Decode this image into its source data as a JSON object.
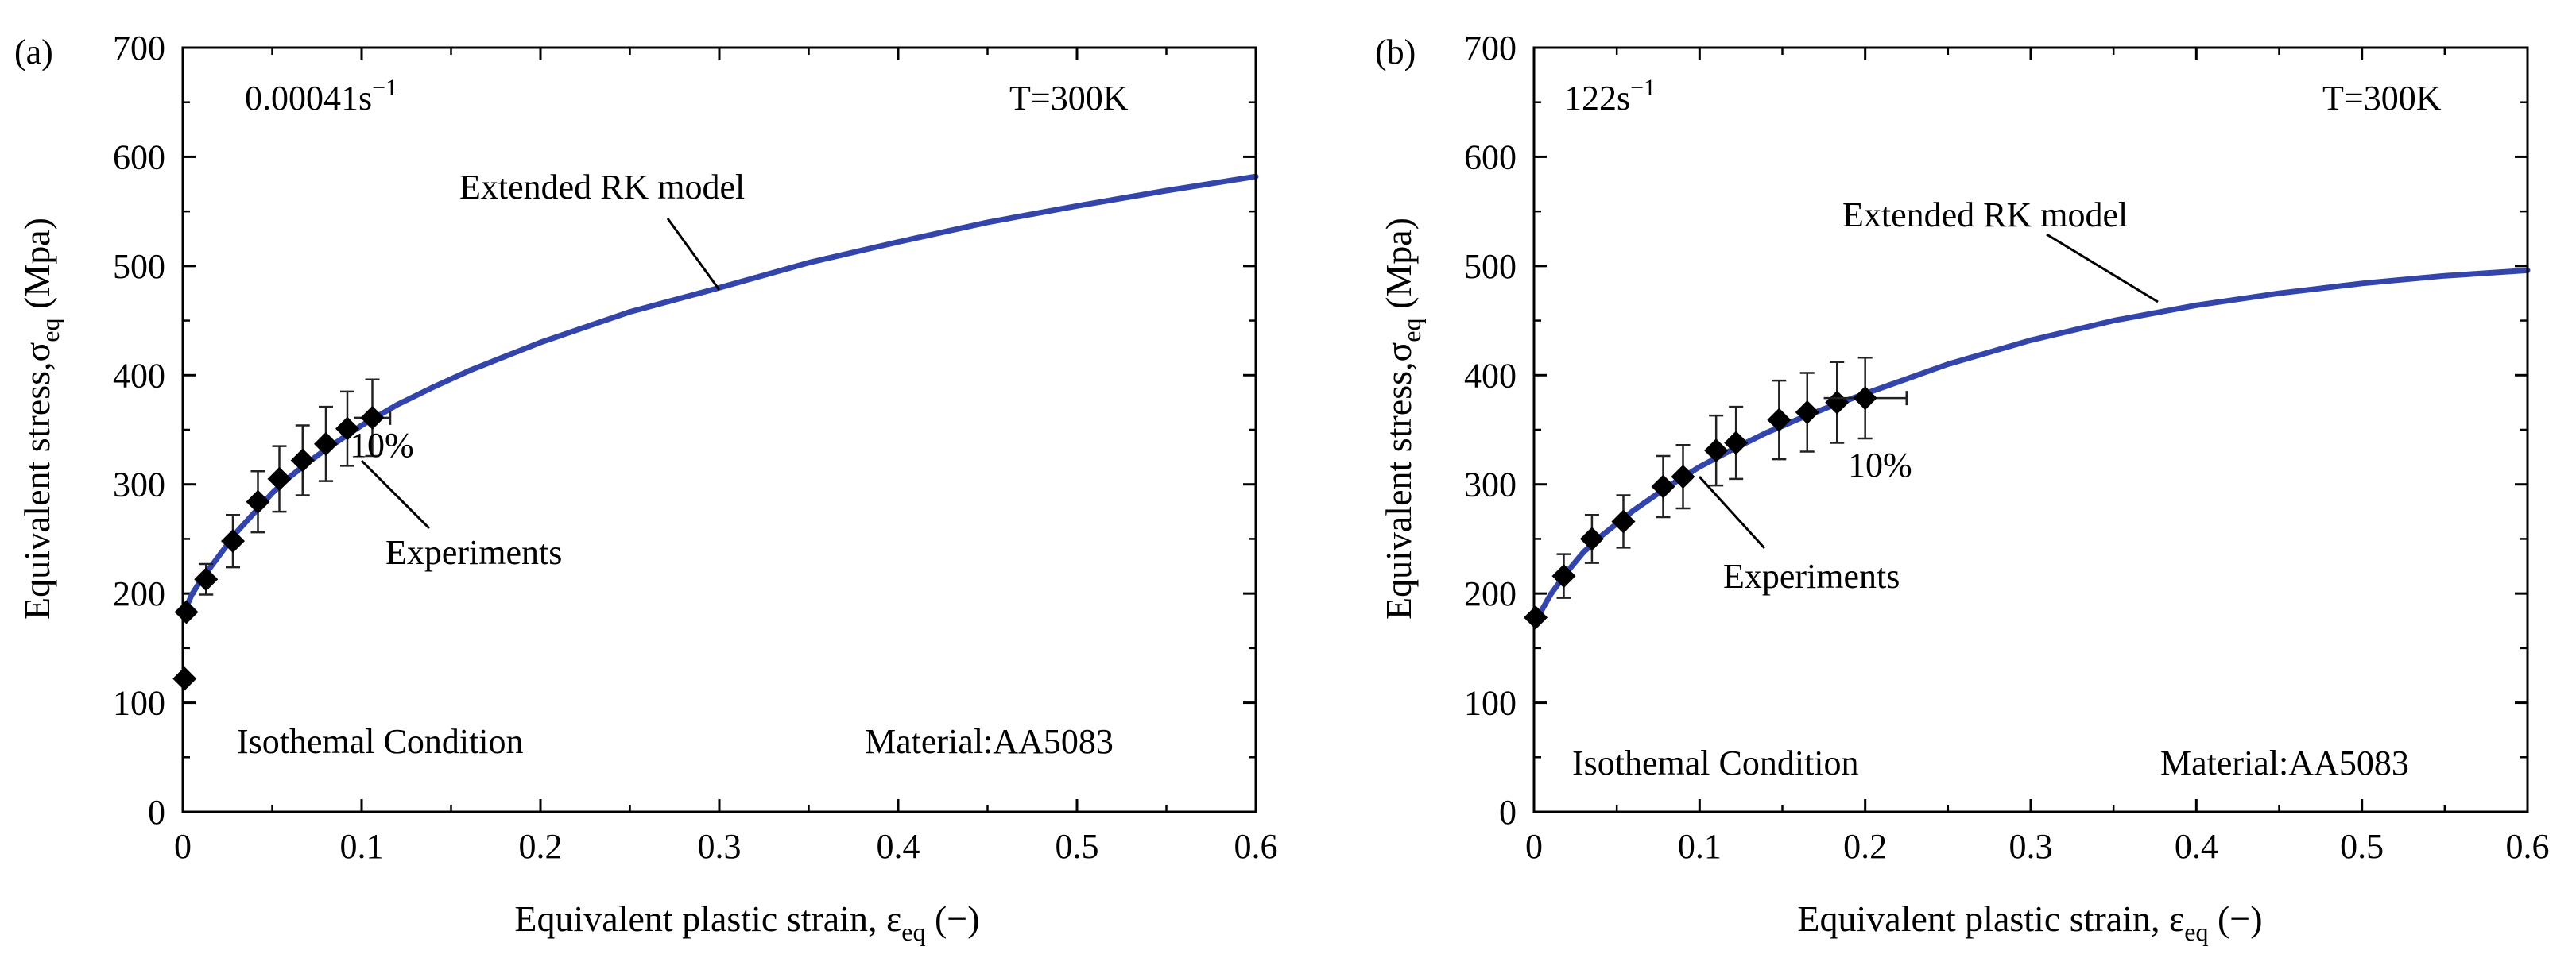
{
  "chart_data": [
    {
      "type": "line",
      "panel_label": "(a)",
      "xlabel": {
        "main": "Equivalent plastic strain, ε",
        "sub": "eq",
        "unit": " (−)"
      },
      "ylabel": {
        "main": "Equivalent stress,σ",
        "sub": "eq",
        "unit": " (Mpa)"
      },
      "xlim": [
        0,
        0.6
      ],
      "ylim": [
        0,
        700
      ],
      "xticks": [
        0,
        0.1,
        0.2,
        0.3,
        0.4,
        0.5,
        0.6
      ],
      "xtick_labels": [
        "0",
        "0.1",
        "0.2",
        "0.3",
        "0.4",
        "0.5",
        "0.6"
      ],
      "yticks": [
        0,
        100,
        200,
        300,
        400,
        500,
        600,
        700
      ],
      "ytick_labels": [
        "0",
        "100",
        "200",
        "300",
        "400",
        "500",
        "600",
        "700"
      ],
      "strain_rate": {
        "main": "0.00041s",
        "sup": "−1"
      },
      "temperature": "T=300K",
      "condition": "Isothemal Condition",
      "material": "Material:AA5083",
      "model_label": "Extended RK model",
      "experiments_label": "Experiments",
      "error_label": "10%",
      "series": [
        {
          "name": "Extended RK model",
          "color": "#3344aa",
          "x": [
            0,
            0.005,
            0.01,
            0.02,
            0.03,
            0.04,
            0.05,
            0.06,
            0.07,
            0.08,
            0.09,
            0.1,
            0.12,
            0.14,
            0.16,
            0.18,
            0.2,
            0.25,
            0.3,
            0.35,
            0.4,
            0.45,
            0.5,
            0.55,
            0.6
          ],
          "y": [
            180,
            199,
            212,
            234,
            256,
            274,
            292,
            307,
            320,
            332,
            343,
            354,
            373,
            389,
            404,
            417,
            430,
            458,
            480,
            503,
            522,
            540,
            555,
            569,
            582
          ]
        },
        {
          "name": "Experiments",
          "color": "#000000",
          "x": [
            0.001,
            0.002,
            0.013,
            0.028,
            0.042,
            0.054,
            0.067,
            0.08,
            0.092,
            0.106
          ],
          "y": [
            122,
            183,
            213,
            248,
            284,
            305,
            322,
            337,
            351,
            361
          ],
          "y_err": [
            0,
            0,
            14,
            24,
            28,
            30,
            32,
            34,
            34,
            35
          ],
          "x_err": [
            0,
            0,
            0,
            0,
            0,
            0,
            0,
            0,
            0,
            0.01
          ]
        }
      ]
    },
    {
      "type": "line",
      "panel_label": "(b)",
      "xlabel": {
        "main": "Equivalent plastic strain, ε",
        "sub": "eq",
        "unit": " (−)"
      },
      "ylabel": {
        "main": "Equivalent stress,σ",
        "sub": "eq",
        "unit": " (Mpa)"
      },
      "xlim": [
        0,
        0.6
      ],
      "ylim": [
        0,
        700
      ],
      "xticks": [
        0,
        0.1,
        0.2,
        0.3,
        0.4,
        0.5,
        0.6
      ],
      "xtick_labels": [
        "0",
        "0.1",
        "0.2",
        "0.3",
        "0.4",
        "0.5",
        "0.6"
      ],
      "yticks": [
        0,
        100,
        200,
        300,
        400,
        500,
        600,
        700
      ],
      "ytick_labels": [
        "0",
        "100",
        "200",
        "300",
        "400",
        "500",
        "600",
        "700"
      ],
      "strain_rate": {
        "main": "122s",
        "sup": "−1"
      },
      "temperature": "T=300K",
      "condition": "Isothemal Condition",
      "material": "Material:AA5083",
      "model_label": "Extended RK model",
      "experiments_label": "Experiments",
      "error_label": "10%",
      "series": [
        {
          "name": "Extended RK model",
          "color": "#3344aa",
          "x": [
            0,
            0.01,
            0.02,
            0.03,
            0.04,
            0.05,
            0.06,
            0.08,
            0.1,
            0.12,
            0.14,
            0.16,
            0.18,
            0.2,
            0.25,
            0.3,
            0.35,
            0.4,
            0.45,
            0.5,
            0.55,
            0.6
          ],
          "y": [
            172,
            199,
            220,
            238,
            252,
            264,
            276,
            297,
            316,
            332,
            347,
            360,
            372,
            383,
            410,
            432,
            450,
            464,
            475,
            484,
            491,
            496
          ]
        },
        {
          "name": "Experiments",
          "color": "#000000",
          "x": [
            0.001,
            0.018,
            0.035,
            0.054,
            0.078,
            0.09,
            0.11,
            0.122,
            0.148,
            0.165,
            0.183,
            0.2
          ],
          "y": [
            178,
            216,
            250,
            266,
            298,
            307,
            331,
            338,
            359,
            366,
            375,
            379
          ],
          "y_err": [
            0,
            20,
            22,
            24,
            28,
            29,
            32,
            33,
            36,
            36,
            37,
            37
          ],
          "x_err": [
            0,
            0,
            0,
            0,
            0,
            0,
            0,
            0,
            0,
            0,
            0,
            0.025
          ]
        }
      ]
    }
  ]
}
